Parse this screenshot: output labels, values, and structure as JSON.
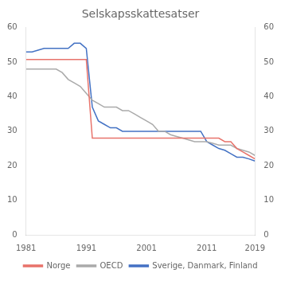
{
  "chart_data": {
    "type": "line",
    "title": "Selskapsskattesatser",
    "x": [
      1981,
      1982,
      1983,
      1984,
      1985,
      1986,
      1987,
      1988,
      1989,
      1990,
      1991,
      1992,
      1993,
      1994,
      1995,
      1996,
      1997,
      1998,
      1999,
      2000,
      2001,
      2002,
      2003,
      2004,
      2005,
      2006,
      2007,
      2008,
      2009,
      2010,
      2011,
      2012,
      2013,
      2014,
      2015,
      2016,
      2017,
      2018,
      2019
    ],
    "series": [
      {
        "name": "Norge",
        "color": "#e8736b",
        "values": [
          50.8,
          50.8,
          50.8,
          50.8,
          50.8,
          50.8,
          50.8,
          50.8,
          50.8,
          50.8,
          50.8,
          28,
          28,
          28,
          28,
          28,
          28,
          28,
          28,
          28,
          28,
          28,
          28,
          28,
          28,
          28,
          28,
          28,
          28,
          28,
          28,
          28,
          28,
          27,
          27,
          25,
          24,
          23,
          22
        ]
      },
      {
        "name": "OECD",
        "color": "#aaaaaa",
        "values": [
          48,
          48,
          48,
          48,
          48,
          48,
          47,
          45,
          44,
          43,
          41,
          39,
          38,
          37,
          37,
          37,
          36,
          36,
          35,
          34,
          33,
          32,
          30,
          30,
          29,
          28.5,
          28,
          27.5,
          27,
          27,
          27,
          26.5,
          26,
          26,
          26,
          25,
          24.5,
          24,
          23
        ]
      },
      {
        "name": "Sverige, Danmark, Finland",
        "color": "#4472c4",
        "values": [
          53,
          53,
          53.5,
          54,
          54,
          54,
          54,
          54,
          55.5,
          55.5,
          54,
          37,
          33,
          32,
          31,
          31,
          30,
          30,
          30,
          30,
          30,
          30,
          30,
          30,
          30,
          30,
          30,
          30,
          30,
          30,
          27,
          26,
          25,
          24.5,
          23.5,
          22.5,
          22.5,
          22,
          21.4
        ]
      }
    ],
    "xlim": [
      1981,
      2019
    ],
    "xticks": [
      1981,
      1991,
      2001,
      2011,
      2019
    ],
    "ylim": [
      0,
      60
    ],
    "yticks": [
      0,
      10,
      20,
      30,
      40,
      50,
      60
    ],
    "y2lim": [
      0,
      60
    ],
    "y2ticks": [
      0,
      10,
      20,
      30,
      40,
      50,
      60
    ],
    "grid": false,
    "legend": "bottom"
  }
}
